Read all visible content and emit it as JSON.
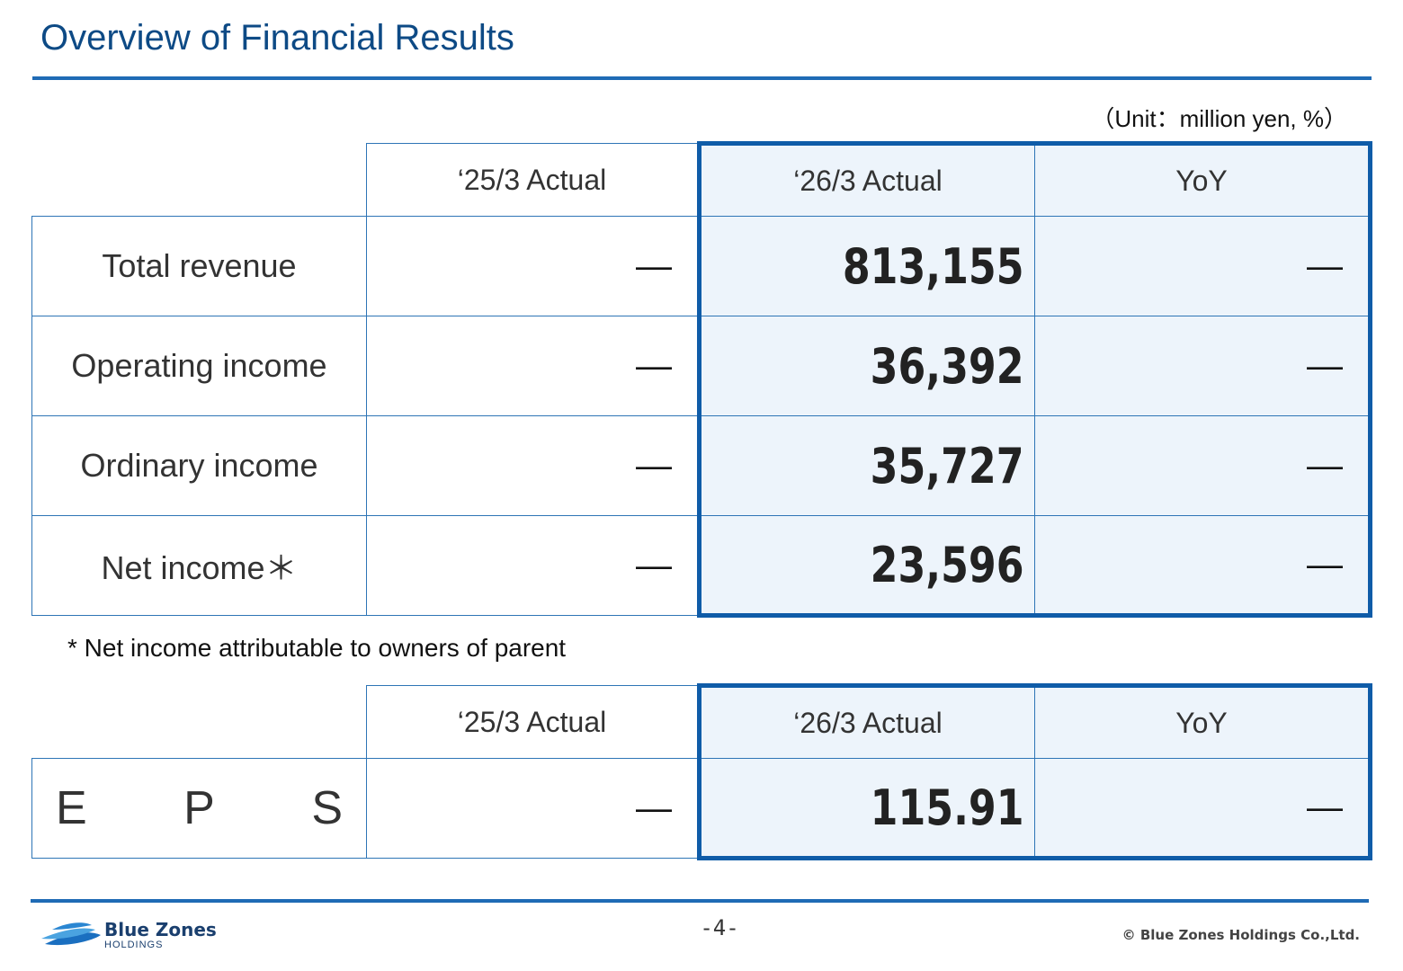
{
  "header": {
    "title": "Overview of Financial Results",
    "unit": "（Unit：million yen, %）"
  },
  "table_main": {
    "columns": [
      "‘25/3 Actual",
      "‘26/3 Actual",
      "YoY"
    ],
    "rows": [
      {
        "label": "Total revenue",
        "prev": "—",
        "curr": "813,155",
        "yoy": "—"
      },
      {
        "label": "Operating income",
        "prev": "—",
        "curr": "36,392",
        "yoy": "—"
      },
      {
        "label": "Ordinary income",
        "prev": "—",
        "curr": "35,727",
        "yoy": "—"
      },
      {
        "label": "Net income＊",
        "prev": "—",
        "curr": "23,596",
        "yoy": "—"
      }
    ]
  },
  "footnote": "* Net income attributable to owners of parent",
  "table_eps": {
    "columns": [
      "‘25/3 Actual",
      "‘26/3 Actual",
      "YoY"
    ],
    "label_letters": [
      "E",
      "P",
      "S"
    ],
    "prev": "—",
    "curr": "115.91",
    "yoy": "—"
  },
  "footer": {
    "logo_name": "Blue Zones",
    "logo_sub": "HOLDINGS",
    "page": "-4-",
    "copyright": "© Blue Zones Holdings Co.,Ltd."
  },
  "colors": {
    "title": "#0d4a85",
    "accent": "#1f6bb5",
    "highlight_bg": "#edf4fb"
  }
}
